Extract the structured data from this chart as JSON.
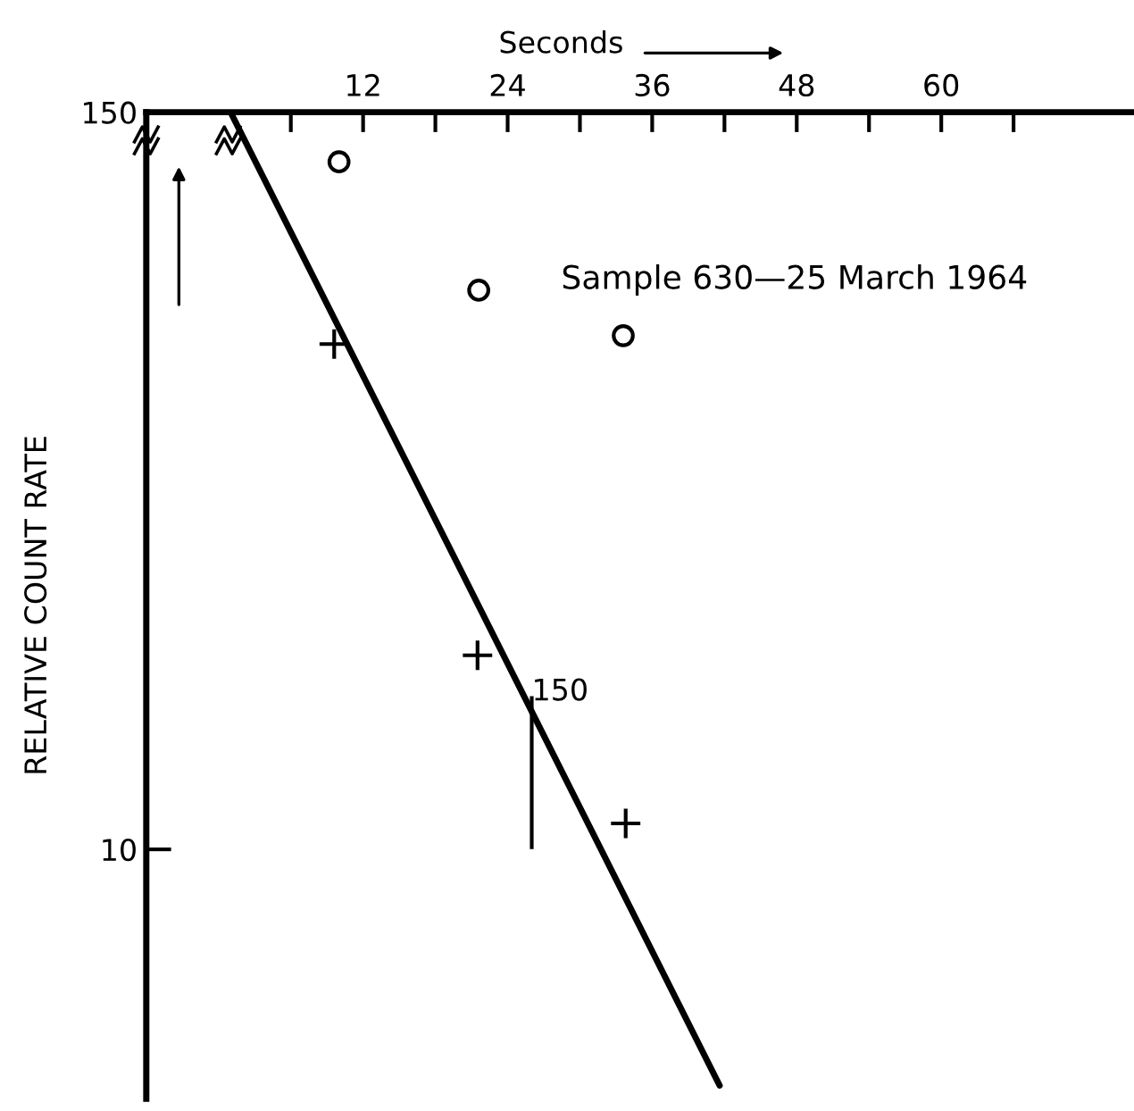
{
  "chart_data": {
    "type": "scatter",
    "xlabel": "Seconds",
    "ylabel": "RELATIVE COUNT RATE",
    "log": "y",
    "xlim": [
      -6,
      76
    ],
    "ylim": [
      4,
      150
    ],
    "xticks": [
      {
        "value": 6,
        "label": null
      },
      12,
      {
        "value": 18,
        "label": null
      },
      24,
      {
        "value": 30,
        "label": null
      },
      36,
      {
        "value": 42,
        "label": null
      },
      48,
      {
        "value": 54,
        "label": null
      },
      60,
      {
        "value": 66,
        "label": null
      }
    ],
    "yticks": [
      10,
      150
    ],
    "grid": false,
    "legend": false,
    "series": [
      {
        "marker": "circle",
        "color": "#000000",
        "x": [
          10,
          21.6,
          33.6
        ],
        "values": [
          125,
          78,
          66
        ]
      },
      {
        "marker": "cross",
        "color": "#000000",
        "x": [
          9.6,
          21.5,
          33.8
        ],
        "values": [
          64,
          20.4,
          11
        ]
      },
      {
        "type": "line",
        "marker": "none",
        "line_style": "solid",
        "color": "#000000",
        "x": [
          1,
          41.6
        ],
        "values": [
          150,
          4.2
        ]
      }
    ],
    "annotations": [
      "Sample 630—25 March 1964",
      {
        "text": "150",
        "x": 26,
        "y": 16
      }
    ]
  }
}
